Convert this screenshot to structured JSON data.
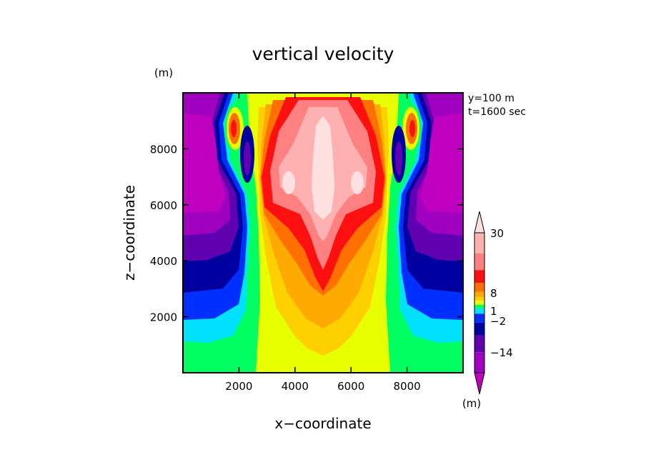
{
  "chart_data": {
    "type": "heatmap",
    "title": "vertical velocity",
    "xlabel": "x−coordinate",
    "ylabel": "z−coordinate",
    "y_unit": "(m)",
    "colorbar_unit": "(m)",
    "annotations": [
      "y=100 m",
      "t=1600 sec"
    ],
    "xlim": [
      0,
      10000
    ],
    "ylim": [
      0,
      10000
    ],
    "x_ticks": [
      2000,
      4000,
      6000,
      8000
    ],
    "x_tick_labels": [
      "2000",
      "4000",
      "6000",
      "8000"
    ],
    "y_ticks": [
      2000,
      4000,
      6000,
      8000
    ],
    "y_tick_labels": [
      "2000",
      "4000",
      "6000",
      "8000"
    ],
    "colorbar": {
      "levels": [
        -14,
        -8,
        -4,
        -2,
        -1,
        -0.5,
        0,
        0.5,
        1,
        2,
        4,
        8,
        16,
        30
      ],
      "colors": [
        "#c000c0",
        "#a000c0",
        "#6000b0",
        "#0000a0",
        "#0030ff",
        "#00e0ff",
        "#00ff60",
        "#e8ff00",
        "#ffd000",
        "#ffaa00",
        "#ff7000",
        "#ff1010",
        "#ff8080",
        "#ffb0b0",
        "#ffe0e0"
      ],
      "labels": [
        "30",
        "8",
        "1",
        "−2",
        "−14"
      ]
    }
  }
}
